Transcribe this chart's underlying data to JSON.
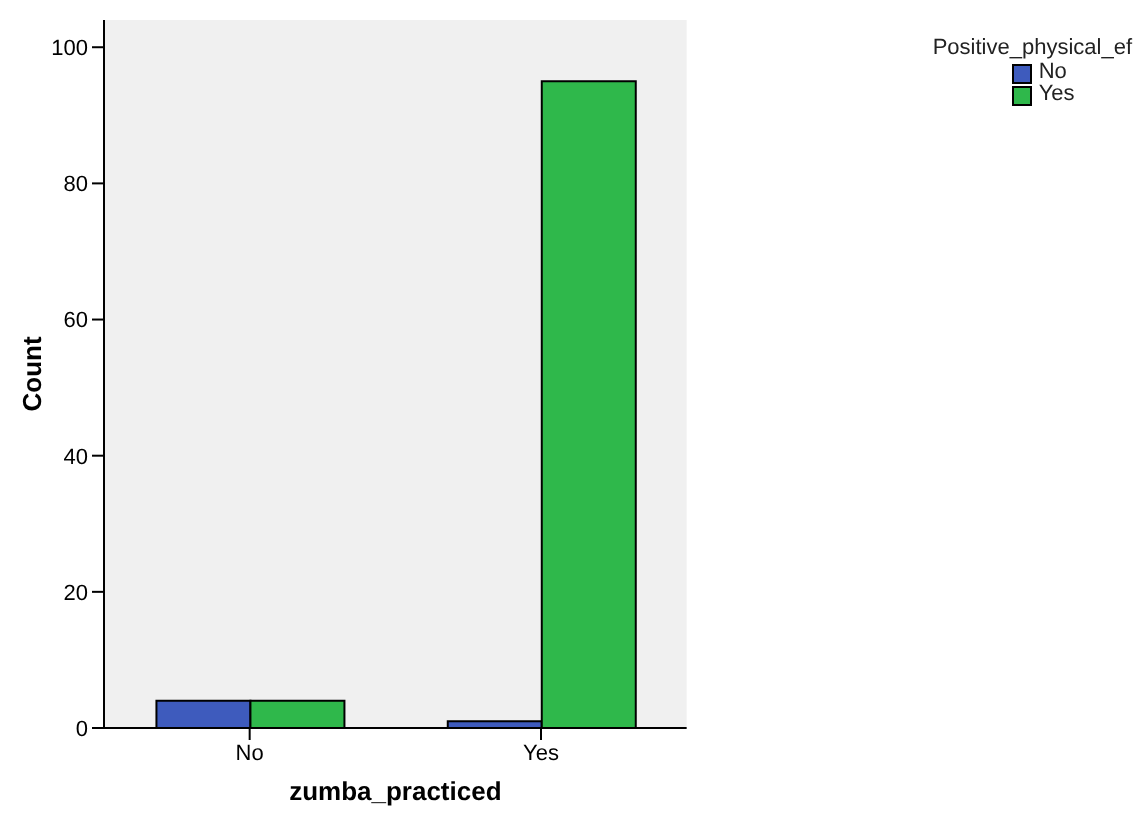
{
  "chart_data": {
    "type": "bar",
    "xlabel": "zumba_practiced",
    "ylabel": "Count",
    "legend_title": "Positive_physical_ef",
    "categories": [
      "No",
      "Yes"
    ],
    "series": [
      {
        "name": "No",
        "color": "#3e5bbd",
        "values": [
          4,
          1
        ]
      },
      {
        "name": "Yes",
        "color": "#2fb84b",
        "values": [
          4,
          95
        ]
      }
    ],
    "ylim": [
      0,
      104
    ],
    "yticks": [
      0,
      20,
      40,
      60,
      80,
      100
    ],
    "grid": false,
    "legend": "top right"
  }
}
